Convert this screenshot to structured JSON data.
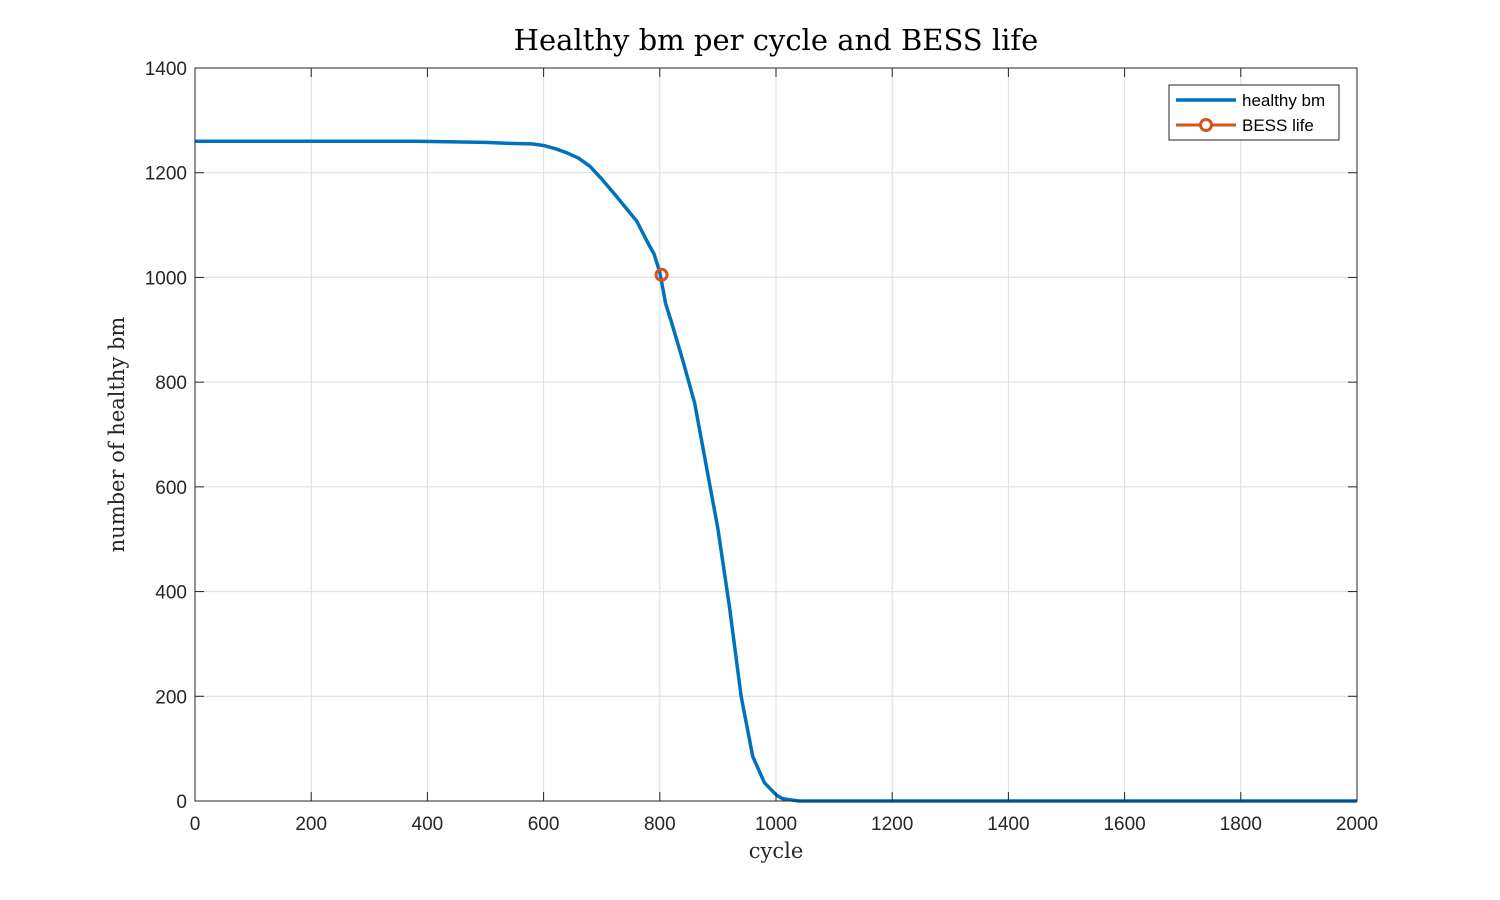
{
  "chart_data": {
    "type": "line",
    "title": "Healthy bm per cycle and BESS life",
    "xlabel": "cycle",
    "ylabel": "number of healthy bm",
    "xlim": [
      0,
      2000
    ],
    "ylim": [
      0,
      1400
    ],
    "xticks": [
      0,
      200,
      400,
      600,
      800,
      1000,
      1200,
      1400,
      1600,
      1800,
      2000
    ],
    "yticks": [
      0,
      200,
      400,
      600,
      800,
      1000,
      1200,
      1400
    ],
    "xtick_labels": [
      "0",
      "200",
      "400",
      "600",
      "800",
      "1000",
      "1200",
      "1400",
      "1600",
      "1800",
      "2000"
    ],
    "ytick_labels": [
      "0",
      "200",
      "400",
      "600",
      "800",
      "1000",
      "1200",
      "1400"
    ],
    "grid": true,
    "legend_position": "top-right",
    "series": [
      {
        "name": "healthy bm",
        "color": "#0072BD",
        "x": [
          0,
          380,
          500,
          540,
          580,
          600,
          620,
          640,
          660,
          680,
          700,
          720,
          740,
          760,
          780,
          790,
          800,
          810,
          820,
          840,
          860,
          880,
          900,
          920,
          940,
          960,
          980,
          1000,
          1010,
          1020,
          1040,
          2000
        ],
        "y": [
          1260,
          1260,
          1258,
          1256,
          1255,
          1252,
          1246,
          1238,
          1228,
          1212,
          1188,
          1162,
          1135,
          1108,
          1065,
          1045,
          1010,
          950,
          915,
          840,
          760,
          640,
          520,
          370,
          200,
          85,
          35,
          12,
          5,
          3,
          0,
          0
        ]
      },
      {
        "name": "BESS life",
        "color": "#D95319",
        "marker": "circle",
        "x": [
          803
        ],
        "y": [
          1005
        ]
      }
    ]
  }
}
